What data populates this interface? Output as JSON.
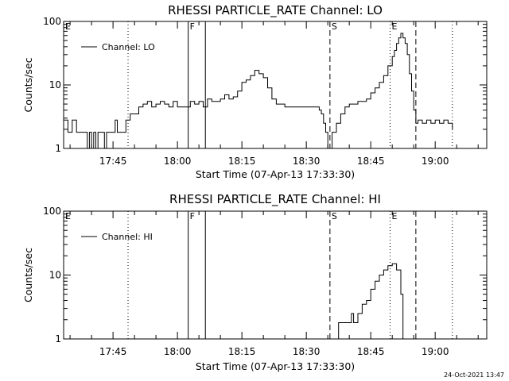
{
  "footer": {
    "timestamp": "24-Oct-2021 13:47"
  },
  "chart_data": [
    {
      "type": "line",
      "title": "RHESSI PARTICLE_RATE Channel: LO",
      "xlabel": "Start Time (07-Apr-13 17:33:30)",
      "ylabel": "Counts/sec",
      "y_scale": "log",
      "ylim": [
        1,
        100
      ],
      "y_ticks": [
        1,
        10,
        100
      ],
      "y_tick_labels": [
        "1",
        "10",
        "100"
      ],
      "xlim": [
        "17:33:30",
        "19:12:00"
      ],
      "x_ticks": [
        "17:45",
        "18:00",
        "18:15",
        "18:30",
        "18:45",
        "19:00"
      ],
      "legend": {
        "label": "Channel: LO",
        "position": "top-left"
      },
      "markers": [
        {
          "label": "E",
          "time": "17:33:30",
          "style": "none"
        },
        {
          "label": "",
          "time": "17:48:30",
          "style": "dotted"
        },
        {
          "label": "F",
          "time": "18:02:30",
          "style": "solid"
        },
        {
          "label": "",
          "time": "18:06:30",
          "style": "solid"
        },
        {
          "label": "S",
          "time": "18:35:30",
          "style": "dashed"
        },
        {
          "label": "E",
          "time": "18:49:30",
          "style": "dotted"
        },
        {
          "label": "",
          "time": "18:55:30",
          "style": "dashed"
        },
        {
          "label": "",
          "time": "19:04:00",
          "style": "dotted"
        }
      ],
      "series": [
        {
          "x": [
            "17:33:30",
            "17:34:30",
            "17:35:30",
            "17:36:30",
            "17:37:00",
            "17:37:30",
            "17:38:00",
            "17:38:30",
            "17:39:00",
            "17:39:30",
            "17:40:00",
            "17:40:30",
            "17:41:00",
            "17:41:30",
            "17:42:00",
            "17:42:30",
            "17:43:00",
            "17:43:30",
            "17:44:00",
            "17:44:30",
            "17:45:00",
            "17:45:30",
            "17:46:00",
            "17:46:30",
            "17:47:00",
            "17:47:30",
            "17:48:00",
            "17:48:30",
            "17:49:00",
            "17:49:30",
            "17:50:00",
            "17:51:00",
            "17:52:00",
            "17:53:00",
            "17:54:00",
            "17:55:00",
            "17:56:00",
            "17:57:00",
            "17:58:00",
            "17:59:00",
            "18:00:00",
            "18:01:00",
            "18:02:00",
            "18:03:00",
            "18:04:00",
            "18:05:00",
            "18:06:00",
            "18:07:00",
            "18:08:00",
            "18:09:00",
            "18:10:00",
            "18:11:00",
            "18:12:00",
            "18:13:00",
            "18:14:00",
            "18:15:00",
            "18:16:00",
            "18:17:00",
            "18:18:00",
            "18:19:00",
            "18:20:00",
            "18:21:00",
            "18:22:00",
            "18:23:00",
            "18:24:00",
            "18:25:00",
            "18:26:00",
            "18:27:00",
            "18:28:00",
            "18:29:00",
            "18:30:00",
            "18:31:00",
            "18:32:00",
            "18:33:00",
            "18:33:30",
            "18:34:00",
            "18:34:30",
            "18:35:00",
            "18:36:00",
            "18:37:00",
            "18:38:00",
            "18:39:00",
            "18:40:00",
            "18:41:00",
            "18:42:00",
            "18:43:00",
            "18:44:00",
            "18:45:00",
            "18:46:00",
            "18:47:00",
            "18:48:00",
            "18:49:00",
            "18:50:00",
            "18:50:30",
            "18:51:00",
            "18:51:30",
            "18:52:00",
            "18:52:30",
            "18:53:00",
            "18:53:30",
            "18:54:00",
            "18:54:30",
            "18:55:00",
            "18:55:30",
            "18:56:00",
            "18:57:00",
            "18:58:00",
            "18:59:00",
            "19:00:00",
            "19:01:00",
            "19:02:00",
            "19:03:00",
            "19:04:00"
          ],
          "y": [
            2.8,
            1.8,
            2.8,
            1.8,
            1.8,
            1.8,
            1.8,
            1.8,
            1.0,
            1.8,
            1.0,
            1.8,
            1.0,
            1.8,
            1.8,
            1.8,
            1.0,
            1.8,
            1.8,
            1.8,
            1.8,
            2.8,
            1.8,
            1.8,
            1.8,
            1.8,
            2.8,
            2.8,
            3.5,
            3.5,
            3.5,
            4.5,
            5.0,
            5.5,
            4.5,
            5.0,
            5.5,
            5.0,
            4.5,
            5.5,
            4.5,
            4.5,
            4.5,
            5.5,
            5.0,
            5.5,
            4.5,
            6.0,
            5.5,
            5.5,
            6.0,
            7.0,
            6.0,
            6.5,
            8.0,
            11.0,
            12.0,
            14.0,
            17.0,
            15.0,
            13.0,
            9.0,
            6.0,
            5.0,
            5.0,
            4.5,
            4.5,
            4.5,
            4.5,
            4.5,
            4.5,
            4.5,
            4.5,
            4.0,
            3.5,
            2.5,
            1.8,
            1.0,
            1.8,
            2.5,
            3.5,
            4.5,
            5.0,
            5.0,
            5.5,
            5.5,
            6.0,
            7.5,
            9.0,
            11.0,
            14.0,
            20.0,
            28.0,
            35.0,
            45.0,
            55.0,
            65.0,
            55.0,
            45.0,
            30.0,
            15.0,
            8.0,
            4.0,
            2.5,
            2.8,
            2.5,
            2.8,
            2.5,
            2.8,
            2.5,
            2.8,
            2.5,
            2.0
          ]
        }
      ]
    },
    {
      "type": "line",
      "title": "RHESSI PARTICLE_RATE Channel: HI",
      "xlabel": "Start Time (07-Apr-13 17:33:30)",
      "ylabel": "Counts/sec",
      "y_scale": "log",
      "ylim": [
        1,
        100
      ],
      "y_ticks": [
        1,
        10,
        100
      ],
      "y_tick_labels": [
        "1",
        "10",
        "100"
      ],
      "xlim": [
        "17:33:30",
        "19:12:00"
      ],
      "x_ticks": [
        "17:45",
        "18:00",
        "18:15",
        "18:30",
        "18:45",
        "19:00"
      ],
      "legend": {
        "label": "Channel: HI",
        "position": "top-left"
      },
      "markers": [
        {
          "label": "E",
          "time": "17:33:30",
          "style": "none"
        },
        {
          "label": "",
          "time": "17:48:30",
          "style": "dotted"
        },
        {
          "label": "F",
          "time": "18:02:30",
          "style": "solid"
        },
        {
          "label": "",
          "time": "18:06:30",
          "style": "solid"
        },
        {
          "label": "S",
          "time": "18:35:30",
          "style": "dashed"
        },
        {
          "label": "E",
          "time": "18:49:30",
          "style": "dotted"
        },
        {
          "label": "",
          "time": "18:55:30",
          "style": "dashed"
        },
        {
          "label": "",
          "time": "19:04:00",
          "style": "dotted"
        }
      ],
      "series": [
        {
          "x": [
            "18:37:00",
            "18:37:30",
            "18:38:00",
            "18:39:00",
            "18:40:00",
            "18:40:30",
            "18:41:00",
            "18:42:00",
            "18:43:00",
            "18:44:00",
            "18:45:00",
            "18:46:00",
            "18:47:00",
            "18:48:00",
            "18:49:00",
            "18:50:00",
            "18:51:00",
            "18:52:00",
            "18:52:30"
          ],
          "y": [
            1.0,
            1.8,
            1.8,
            1.8,
            1.8,
            2.5,
            1.8,
            2.5,
            3.5,
            4.0,
            6.0,
            8.0,
            10.0,
            12.0,
            14.0,
            15.0,
            12.0,
            5.0,
            1.0
          ]
        }
      ]
    }
  ]
}
